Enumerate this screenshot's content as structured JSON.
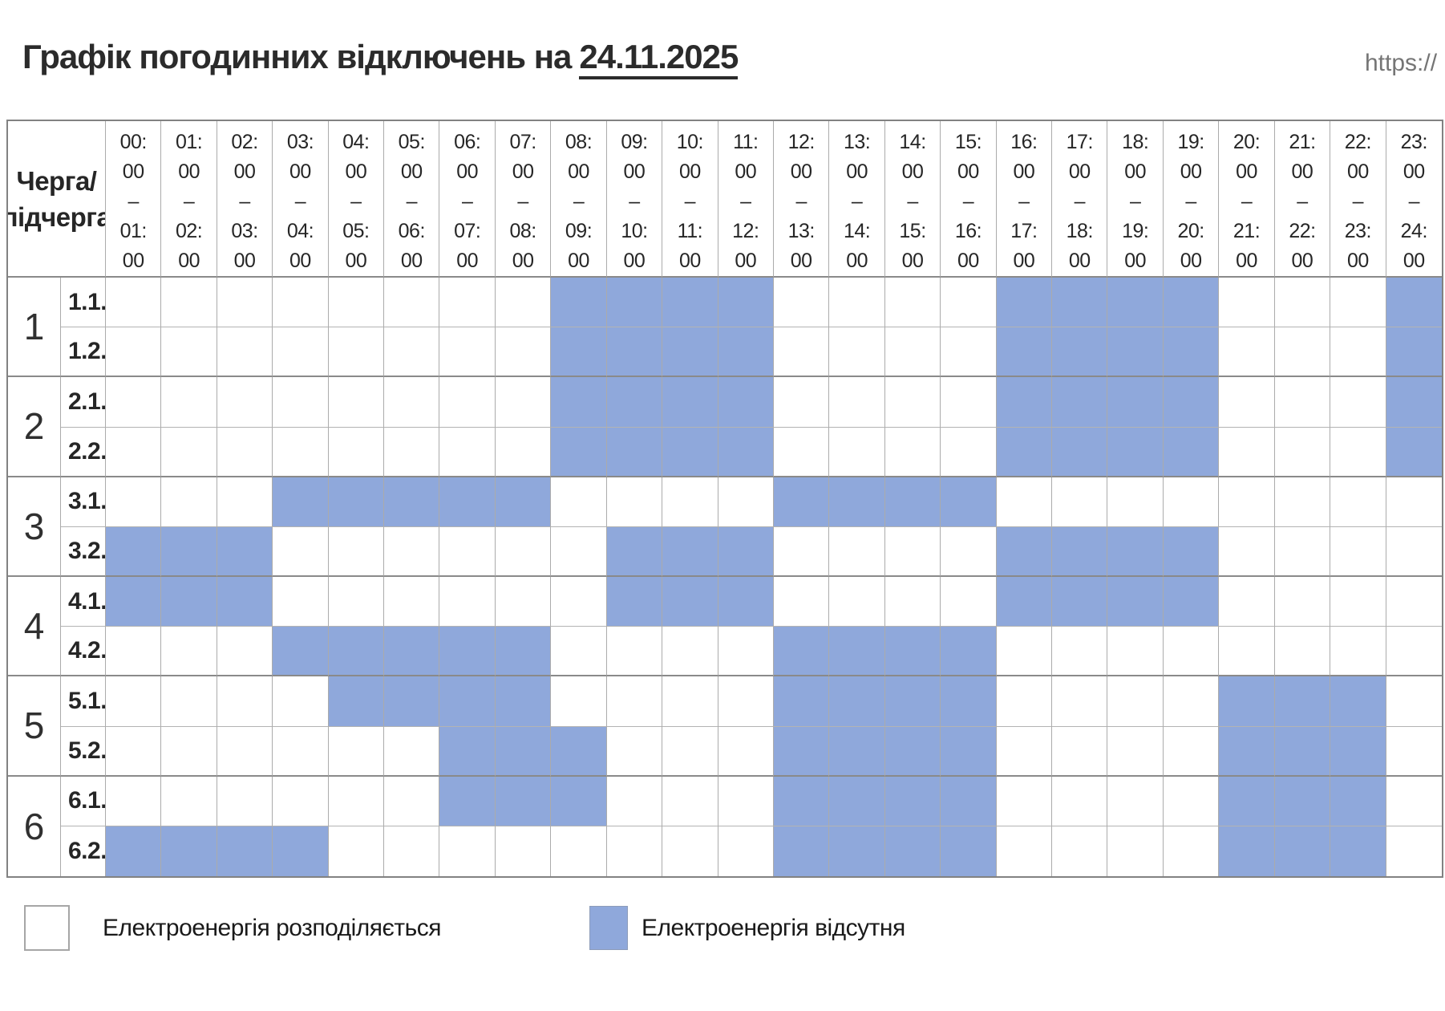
{
  "title": {
    "prefix": "Графік погодинних відключень на",
    "date": "24.11.2025"
  },
  "url_text": "https://",
  "table": {
    "corner_label_line1": "Черга/",
    "corner_label_line2": "підчерга"
  },
  "legend": [
    {
      "label": "Електроенергія розподіляється",
      "state": "available",
      "swatch": "#ffffff"
    },
    {
      "label": "Електроенергія відсутня",
      "state": "outage",
      "swatch": "#8FA8DB"
    }
  ],
  "colors": {
    "outage_fill": "#8FA8DB",
    "grid_line": "#ababab",
    "group_line": "#8a8a8a",
    "outer_border": "#828282",
    "title_text": "#2b2b2b",
    "url_text": "#757575"
  },
  "chart_data": {
    "type": "heatmap",
    "title": "Графік погодинних відключень на 24.11.2025",
    "corner_label": "Черга/підчерга",
    "cell_states": {
      "0": "Електроенергія розподіляється",
      "1": "Електроенергія відсутня"
    },
    "hours": [
      {
        "from": "00:00",
        "to": "01:00"
      },
      {
        "from": "01:00",
        "to": "02:00"
      },
      {
        "from": "02:00",
        "to": "03:00"
      },
      {
        "from": "03:00",
        "to": "04:00"
      },
      {
        "from": "04:00",
        "to": "05:00"
      },
      {
        "from": "05:00",
        "to": "06:00"
      },
      {
        "from": "06:00",
        "to": "07:00"
      },
      {
        "from": "07:00",
        "to": "08:00"
      },
      {
        "from": "08:00",
        "to": "09:00"
      },
      {
        "from": "09:00",
        "to": "10:00"
      },
      {
        "from": "10:00",
        "to": "11:00"
      },
      {
        "from": "11:00",
        "to": "12:00"
      },
      {
        "from": "12:00",
        "to": "13:00"
      },
      {
        "from": "13:00",
        "to": "14:00"
      },
      {
        "from": "14:00",
        "to": "15:00"
      },
      {
        "from": "15:00",
        "to": "16:00"
      },
      {
        "from": "16:00",
        "to": "17:00"
      },
      {
        "from": "17:00",
        "to": "18:00"
      },
      {
        "from": "18:00",
        "to": "19:00"
      },
      {
        "from": "19:00",
        "to": "20:00"
      },
      {
        "from": "20:00",
        "to": "21:00"
      },
      {
        "from": "21:00",
        "to": "22:00"
      },
      {
        "from": "22:00",
        "to": "23:00"
      },
      {
        "from": "23:00",
        "to": "24:00"
      }
    ],
    "queues": [
      {
        "number": "1",
        "rows": [
          {
            "label": "1.1.",
            "outage_hours": [
              8,
              9,
              10,
              11,
              16,
              17,
              18,
              19,
              23
            ]
          },
          {
            "label": "1.2.",
            "outage_hours": [
              8,
              9,
              10,
              11,
              16,
              17,
              18,
              19,
              23
            ]
          }
        ]
      },
      {
        "number": "2",
        "rows": [
          {
            "label": "2.1.",
            "outage_hours": [
              8,
              9,
              10,
              11,
              16,
              17,
              18,
              19,
              23
            ]
          },
          {
            "label": "2.2.",
            "outage_hours": [
              8,
              9,
              10,
              11,
              16,
              17,
              18,
              19,
              23
            ]
          }
        ]
      },
      {
        "number": "3",
        "rows": [
          {
            "label": "3.1.",
            "outage_hours": [
              3,
              4,
              5,
              6,
              7,
              12,
              13,
              14,
              15
            ]
          },
          {
            "label": "3.2.",
            "outage_hours": [
              0,
              1,
              2,
              9,
              10,
              11,
              16,
              17,
              18,
              19
            ]
          }
        ]
      },
      {
        "number": "4",
        "rows": [
          {
            "label": "4.1.",
            "outage_hours": [
              0,
              1,
              2,
              9,
              10,
              11,
              16,
              17,
              18,
              19
            ]
          },
          {
            "label": "4.2.",
            "outage_hours": [
              3,
              4,
              5,
              6,
              7,
              12,
              13,
              14,
              15
            ]
          }
        ]
      },
      {
        "number": "5",
        "rows": [
          {
            "label": "5.1.",
            "outage_hours": [
              4,
              5,
              6,
              7,
              12,
              13,
              14,
              15,
              20,
              21,
              22
            ]
          },
          {
            "label": "5.2.",
            "outage_hours": [
              6,
              7,
              8,
              12,
              13,
              14,
              15,
              20,
              21,
              22
            ]
          }
        ]
      },
      {
        "number": "6",
        "rows": [
          {
            "label": "6.1.",
            "outage_hours": [
              6,
              7,
              8,
              12,
              13,
              14,
              15,
              20,
              21,
              22
            ]
          },
          {
            "label": "6.2.",
            "outage_hours": [
              0,
              1,
              2,
              3,
              12,
              13,
              14,
              15,
              20,
              21,
              22
            ]
          }
        ]
      }
    ]
  }
}
